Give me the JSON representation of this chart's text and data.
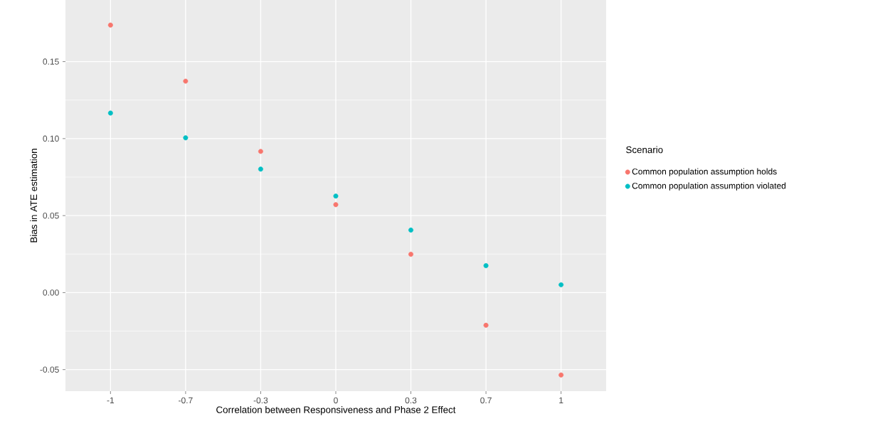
{
  "chart_data": {
    "type": "scatter",
    "xlabel": "Correlation between Responsiveness and Phase 2 Effect",
    "ylabel": "Bias in ATE estimation",
    "legend_title": "Scenario",
    "categories": [
      "-1",
      "-0.7",
      "-0.3",
      "0",
      "0.3",
      "0.7",
      "1"
    ],
    "series": [
      {
        "name": "Common population assumption holds",
        "color": "#f8766d",
        "values": [
          0.1737,
          0.1373,
          0.0917,
          0.0571,
          0.0249,
          -0.0212,
          -0.0535
        ]
      },
      {
        "name": "Common population assumption violated",
        "color": "#00bfc4",
        "values": [
          0.1166,
          0.1005,
          0.0802,
          0.0627,
          0.0406,
          0.0175,
          0.0051
        ]
      }
    ],
    "ylim": [
      -0.064,
      0.19
    ],
    "yticks": [
      {
        "value": -0.05,
        "label": "-0.05"
      },
      {
        "value": 0,
        "label": "0.00"
      },
      {
        "value": 0.05,
        "label": "0.05"
      },
      {
        "value": 0.1,
        "label": "0.10"
      },
      {
        "value": 0.15,
        "label": "0.15"
      }
    ],
    "grid": true,
    "legend": "right"
  }
}
